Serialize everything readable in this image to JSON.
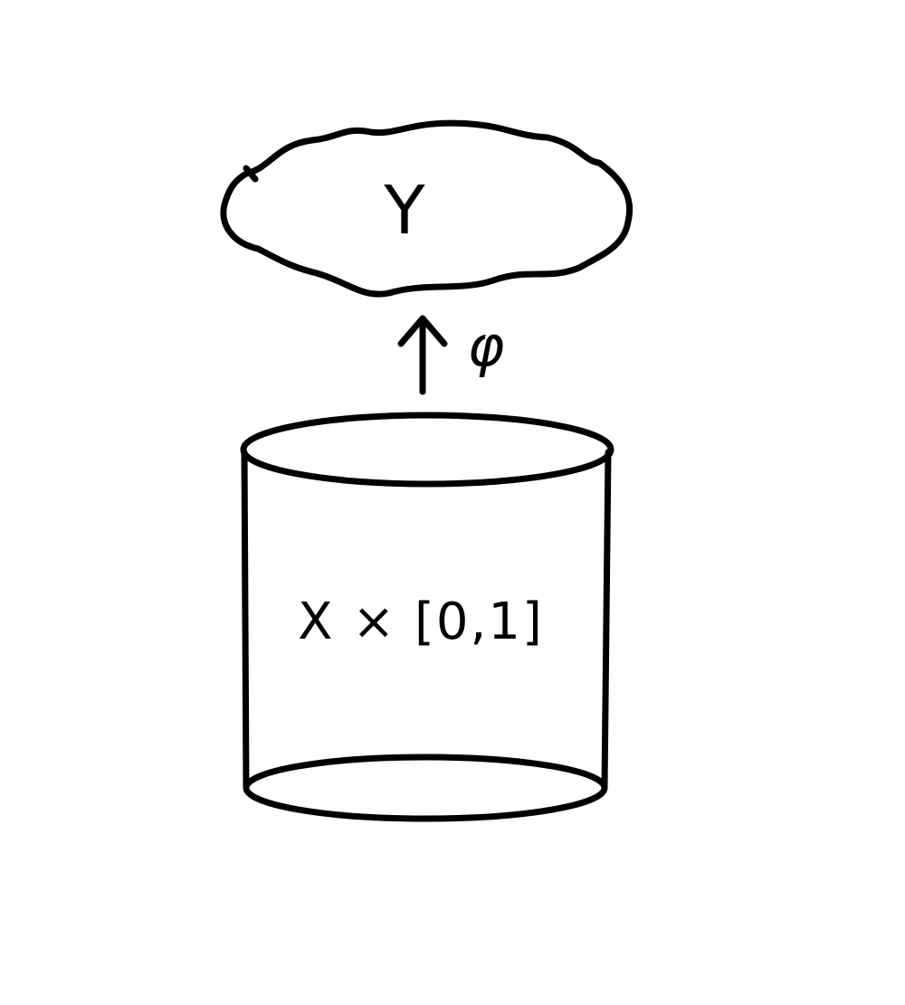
{
  "diagram": {
    "target_space": {
      "label": "Y"
    },
    "map": {
      "label": "φ"
    },
    "source_space": {
      "label": "X × [0,1]"
    }
  },
  "colors": {
    "ink": "#000000",
    "background": "#ffffff"
  }
}
